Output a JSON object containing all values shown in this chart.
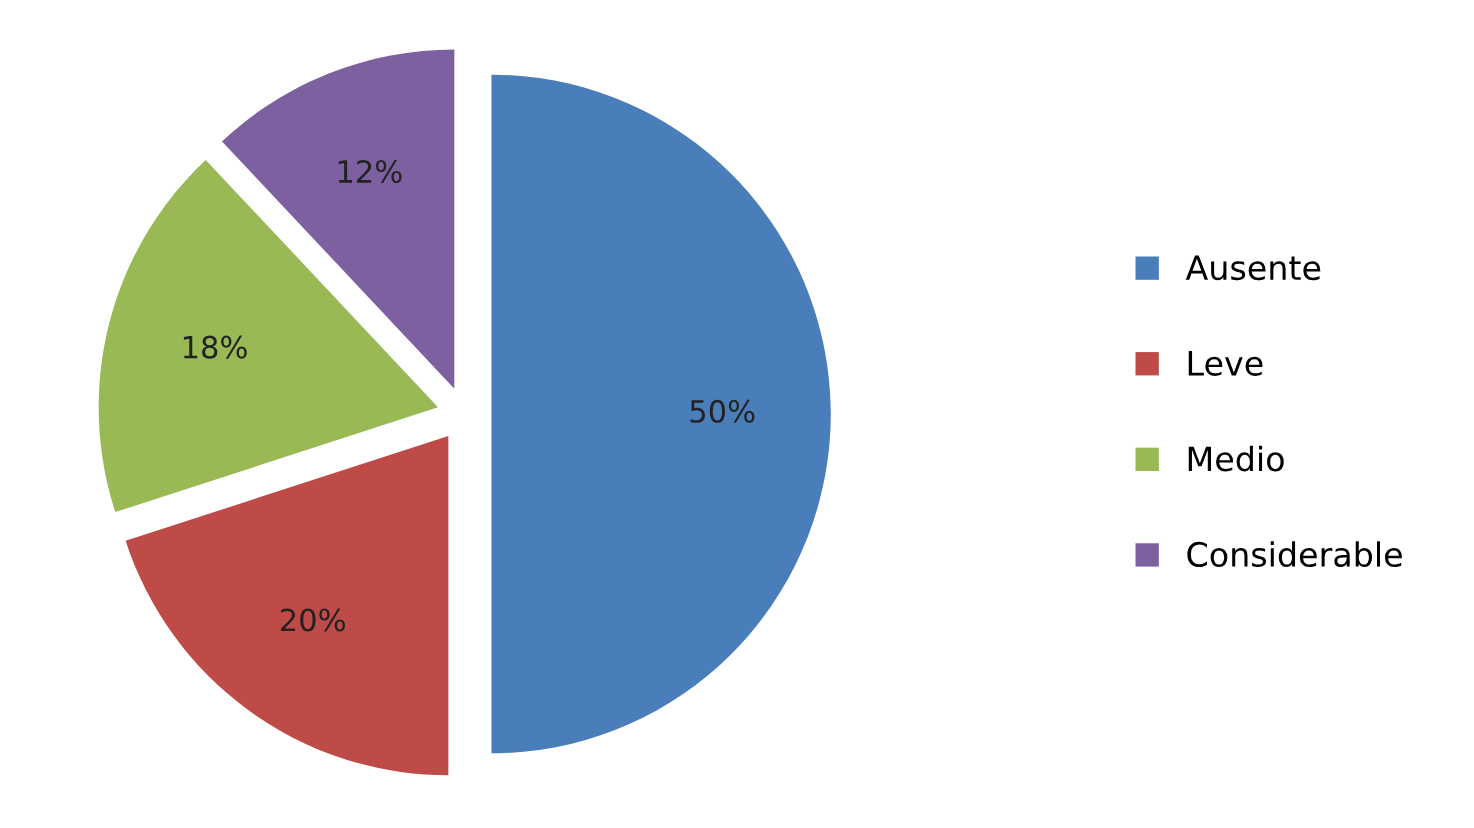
{
  "chart_data": {
    "type": "pie",
    "categories": [
      "Ausente",
      "Leve",
      "Medio",
      "Considerable"
    ],
    "values": [
      50,
      20,
      18,
      12
    ],
    "colors": [
      "#4a7ebb",
      "#be4b48",
      "#98b954",
      "#7d60a0"
    ],
    "value_labels": [
      "50%",
      "20%",
      "18%",
      "12%"
    ],
    "legend": "right"
  }
}
